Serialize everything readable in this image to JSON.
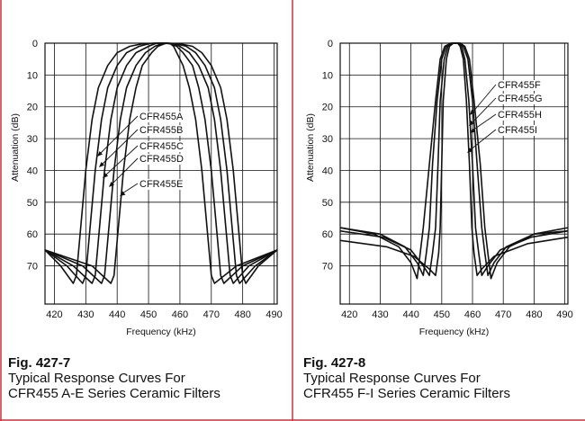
{
  "border_color": "#c8323c",
  "chart_data": [
    {
      "type": "line",
      "xlabel": "Frequency (kHz)",
      "ylabel": "Attenuation (dB)",
      "xlim": [
        417,
        491
      ],
      "ylim": [
        0,
        82
      ],
      "y_inverted": true,
      "x_ticks": [
        "420",
        "430",
        "440",
        "450",
        "460",
        "470",
        "480",
        "490"
      ],
      "y_ticks": [
        "0",
        "10",
        "20",
        "30",
        "40",
        "50",
        "60",
        "70"
      ],
      "grid": true,
      "series": [
        {
          "name": "CFR455A",
          "points": [
            [
              417,
              65
            ],
            [
              422,
              70
            ],
            [
              426,
              75.5
            ],
            [
              427,
              73
            ],
            [
              428,
              62
            ],
            [
              430,
              40
            ],
            [
              432,
              24
            ],
            [
              434,
              14
            ],
            [
              437,
              7
            ],
            [
              440,
              3
            ],
            [
              444,
              1
            ],
            [
              448,
              0.2
            ],
            [
              452,
              0
            ],
            [
              456,
              0
            ],
            [
              460,
              0.2
            ],
            [
              464,
              1
            ],
            [
              467,
              3
            ],
            [
              470,
              7
            ],
            [
              473,
              14
            ],
            [
              475,
              24
            ],
            [
              477,
              40
            ],
            [
              479,
              62
            ],
            [
              480,
              73
            ],
            [
              481,
              75.5
            ],
            [
              485,
              70
            ],
            [
              491,
              65
            ]
          ]
        },
        {
          "name": "CFR455B",
          "points": [
            [
              417,
              65
            ],
            [
              424,
              70
            ],
            [
              429,
              75.5
            ],
            [
              430,
              73
            ],
            [
              431,
              62
            ],
            [
              433,
              40
            ],
            [
              435,
              24
            ],
            [
              437,
              14
            ],
            [
              440,
              7
            ],
            [
              443,
              3
            ],
            [
              447,
              1
            ],
            [
              450,
              0.2
            ],
            [
              452,
              0
            ],
            [
              456,
              0
            ],
            [
              459,
              0.2
            ],
            [
              462,
              1
            ],
            [
              465,
              3
            ],
            [
              468,
              7
            ],
            [
              471,
              14
            ],
            [
              473,
              24
            ],
            [
              475,
              40
            ],
            [
              477,
              62
            ],
            [
              478,
              73
            ],
            [
              479,
              75.5
            ],
            [
              484,
              70
            ],
            [
              491,
              65
            ]
          ]
        },
        {
          "name": "CFR455C",
          "points": [
            [
              417,
              65
            ],
            [
              426,
              70
            ],
            [
              432,
              75.5
            ],
            [
              433,
              73
            ],
            [
              434,
              62
            ],
            [
              436,
              40
            ],
            [
              438,
              24
            ],
            [
              440,
              14
            ],
            [
              443,
              7
            ],
            [
              446,
              3
            ],
            [
              450,
              1
            ],
            [
              452,
              0.2
            ],
            [
              453,
              0
            ],
            [
              456,
              0
            ],
            [
              458,
              0.2
            ],
            [
              460,
              1
            ],
            [
              463,
              3
            ],
            [
              466,
              7
            ],
            [
              469,
              14
            ],
            [
              471,
              24
            ],
            [
              473,
              40
            ],
            [
              475,
              62
            ],
            [
              476,
              73
            ],
            [
              477,
              75.5
            ],
            [
              482,
              70
            ],
            [
              491,
              65
            ]
          ]
        },
        {
          "name": "CFR455D",
          "points": [
            [
              417,
              65
            ],
            [
              429,
              70
            ],
            [
              435,
              75.5
            ],
            [
              436,
              73
            ],
            [
              437,
              62
            ],
            [
              439,
              40
            ],
            [
              441,
              24
            ],
            [
              443,
              14
            ],
            [
              446,
              7
            ],
            [
              449,
              3
            ],
            [
              452,
              1
            ],
            [
              454,
              0.2
            ],
            [
              455,
              0
            ],
            [
              457,
              0.2
            ],
            [
              459,
              1
            ],
            [
              461,
              3
            ],
            [
              464,
              7
            ],
            [
              466,
              14
            ],
            [
              468,
              24
            ],
            [
              470,
              40
            ],
            [
              472,
              62
            ],
            [
              473,
              73
            ],
            [
              474,
              75.5
            ],
            [
              480,
              70
            ],
            [
              491,
              65
            ]
          ]
        },
        {
          "name": "CFR455E",
          "points": [
            [
              417,
              65
            ],
            [
              432,
              70
            ],
            [
              438,
              75.5
            ],
            [
              439,
              73
            ],
            [
              440,
              62
            ],
            [
              442,
              40
            ],
            [
              444,
              24
            ],
            [
              446,
              14
            ],
            [
              448,
              7
            ],
            [
              451,
              3
            ],
            [
              453,
              1
            ],
            [
              455,
              0.2
            ],
            [
              456,
              0
            ],
            [
              457,
              0.2
            ],
            [
              458,
              1
            ],
            [
              459,
              3
            ],
            [
              461,
              7
            ],
            [
              463,
              14
            ],
            [
              465,
              24
            ],
            [
              467,
              40
            ],
            [
              469,
              62
            ],
            [
              470,
              73
            ],
            [
              471,
              75.5
            ],
            [
              478,
              70
            ],
            [
              491,
              65
            ]
          ]
        }
      ],
      "annotations": [
        "CFR455A",
        "CFR455B",
        "CFR455C",
        "CFR455D",
        "CFR455E"
      ]
    },
    {
      "type": "line",
      "xlabel": "Frequency (kHz)",
      "ylabel": "Attenuation (dB)",
      "xlim": [
        417,
        491
      ],
      "ylim": [
        0,
        82
      ],
      "y_inverted": true,
      "x_ticks": [
        "420",
        "430",
        "440",
        "450",
        "460",
        "470",
        "480",
        "490"
      ],
      "y_ticks": [
        "0",
        "10",
        "20",
        "30",
        "40",
        "50",
        "60",
        "70"
      ],
      "grid": true,
      "series": [
        {
          "name": "CFR455F",
          "points": [
            [
              417,
              58
            ],
            [
              428,
              60
            ],
            [
              436,
              64
            ],
            [
              440,
              69
            ],
            [
              442,
              74
            ],
            [
              443,
              66
            ],
            [
              444,
              58
            ],
            [
              446,
              38
            ],
            [
              448,
              18
            ],
            [
              449.5,
              5
            ],
            [
              451,
              1
            ],
            [
              453,
              0
            ],
            [
              456,
              0
            ],
            [
              457.5,
              1
            ],
            [
              459,
              5
            ],
            [
              460.5,
              18
            ],
            [
              462.5,
              38
            ],
            [
              464,
              58
            ],
            [
              465,
              66
            ],
            [
              466,
              74
            ],
            [
              468,
              69
            ],
            [
              472,
              64
            ],
            [
              480,
              60
            ],
            [
              491,
              58
            ]
          ]
        },
        {
          "name": "CFR455G",
          "points": [
            [
              417,
              58
            ],
            [
              430,
              60
            ],
            [
              438,
              64
            ],
            [
              442,
              69
            ],
            [
              444,
              73
            ],
            [
              445,
              66
            ],
            [
              446,
              58
            ],
            [
              447,
              38
            ],
            [
              448.5,
              18
            ],
            [
              450,
              5
            ],
            [
              451.5,
              1
            ],
            [
              453,
              0
            ],
            [
              456,
              0
            ],
            [
              457,
              1
            ],
            [
              458.5,
              5
            ],
            [
              460,
              18
            ],
            [
              461.5,
              38
            ],
            [
              463,
              58
            ],
            [
              464,
              66
            ],
            [
              465,
              73
            ],
            [
              467,
              69
            ],
            [
              471,
              64
            ],
            [
              480,
              60
            ],
            [
              491,
              59
            ]
          ]
        },
        {
          "name": "CFR455H",
          "points": [
            [
              417,
              59
            ],
            [
              431,
              61
            ],
            [
              440,
              65
            ],
            [
              444,
              70
            ],
            [
              446,
              73
            ],
            [
              447,
              66
            ],
            [
              448,
              58
            ],
            [
              448.8,
              38
            ],
            [
              449.5,
              18
            ],
            [
              450.8,
              5
            ],
            [
              452,
              1
            ],
            [
              453.5,
              0
            ],
            [
              455.5,
              0
            ],
            [
              456.5,
              1
            ],
            [
              457.5,
              5
            ],
            [
              458.8,
              18
            ],
            [
              460,
              38
            ],
            [
              461,
              58
            ],
            [
              462,
              66
            ],
            [
              463,
              73
            ],
            [
              465,
              70
            ],
            [
              469,
              65
            ],
            [
              479,
              61
            ],
            [
              491,
              59
            ]
          ]
        },
        {
          "name": "CFR455I",
          "points": [
            [
              417,
              62
            ],
            [
              432,
              64
            ],
            [
              441,
              67
            ],
            [
              446,
              71
            ],
            [
              448,
              73
            ],
            [
              449,
              66
            ],
            [
              449.5,
              58
            ],
            [
              450,
              38
            ],
            [
              450.5,
              18
            ],
            [
              451.5,
              5
            ],
            [
              452.5,
              1
            ],
            [
              453.8,
              0
            ],
            [
              455.2,
              0
            ],
            [
              456,
              1
            ],
            [
              457,
              5
            ],
            [
              458,
              18
            ],
            [
              459,
              38
            ],
            [
              459.8,
              58
            ],
            [
              460.5,
              66
            ],
            [
              461.5,
              73
            ],
            [
              463,
              71
            ],
            [
              467,
              67
            ],
            [
              478,
              63
            ],
            [
              491,
              61
            ]
          ]
        }
      ],
      "annotations": [
        "CFR455F",
        "CFR455G",
        "CFR455H",
        "CFR455I"
      ]
    }
  ],
  "captions": {
    "left": {
      "fig": "Fig. 427-7",
      "line1": "Typical Response Curves For",
      "line2": "CFR455 A-E Series Ceramic Filters"
    },
    "right": {
      "fig": "Fig. 427-8",
      "line1": "Typical Response Curves For",
      "line2": "CFR455 F-I Series Ceramic Filters"
    }
  }
}
